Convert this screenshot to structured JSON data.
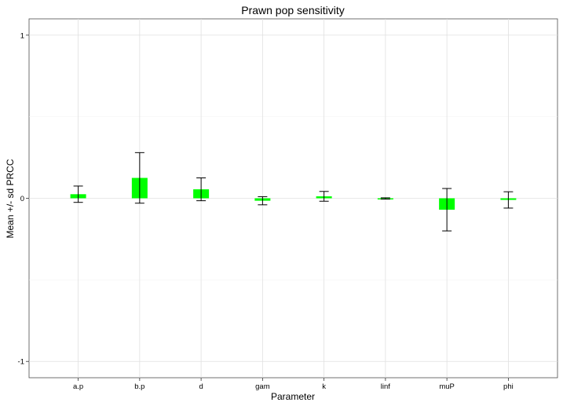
{
  "chart_data": {
    "type": "bar",
    "title": "Prawn pop sensitivity",
    "xlabel": "Parameter",
    "ylabel": "Mean +/- sd PRCC",
    "categories": [
      "a.p",
      "b.p",
      "d",
      "gam",
      "k",
      "linf",
      "muP",
      "phi"
    ],
    "series": [
      {
        "values": [
          0.025,
          0.125,
          0.055,
          -0.015,
          0.012,
          -0.001,
          -0.07,
          -0.01
        ],
        "error": [
          0.05,
          0.155,
          0.07,
          0.025,
          0.03,
          0.004,
          0.13,
          0.05
        ],
        "color": "#00ff00"
      }
    ],
    "ylim": [
      -1.1,
      1.1
    ],
    "yticks": [
      -1,
      0,
      1
    ],
    "grid": true,
    "legend": "none"
  }
}
